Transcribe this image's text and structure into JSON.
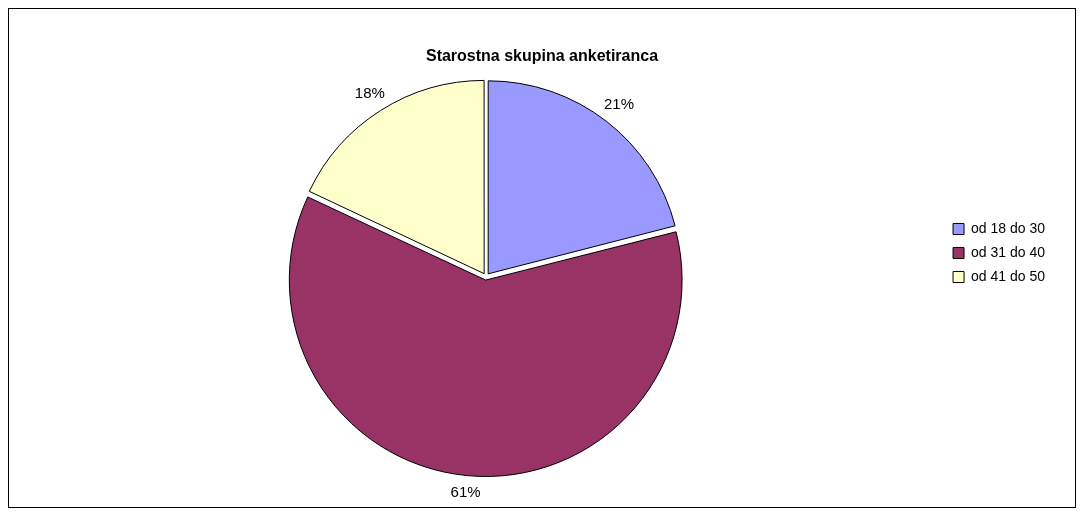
{
  "chart_data": {
    "type": "pie",
    "title": "Starostna skupina anketiranca",
    "categories": [
      "od 18 do 30",
      "od 31 do 40",
      "od 41 do 50"
    ],
    "values": [
      21,
      61,
      18
    ],
    "value_labels": [
      "21%",
      "61%",
      "18%"
    ],
    "colors": [
      "#9999ff",
      "#993366",
      "#ffffcc"
    ],
    "legend": "right"
  }
}
